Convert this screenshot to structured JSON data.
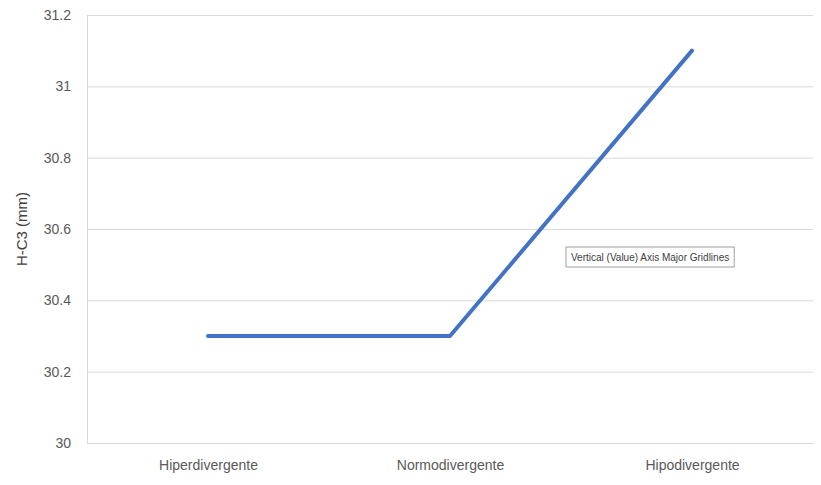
{
  "chart_data": {
    "type": "line",
    "y_label": "H-C3 (mm)",
    "categories": [
      "Hiperdivergente",
      "Normodivergente",
      "Hipodivergente"
    ],
    "values": [
      30.3,
      30.3,
      31.1
    ],
    "color": "#4472c4",
    "ylim": [
      30,
      31.2
    ],
    "yticks": [
      30,
      30.2,
      30.4,
      30.6,
      30.8,
      31,
      31.2
    ],
    "grid": true,
    "annotation": "Vertical (Value) Axis Major Gridlines"
  }
}
